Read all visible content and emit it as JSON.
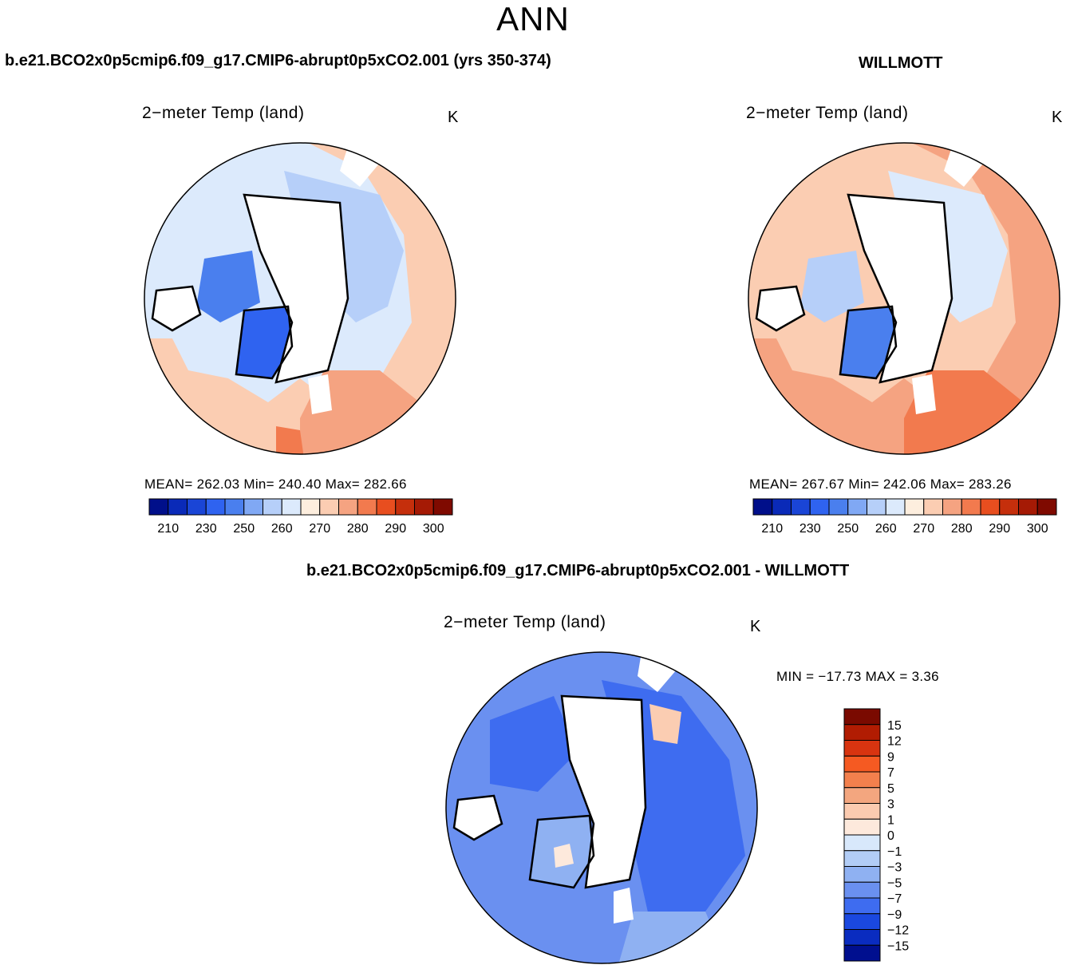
{
  "season": "ANN",
  "panels": [
    {
      "case_title": "b.e21.BCO2x0p5cmip6.f09_g17.CMIP6-abrupt0p5xCO2.001 (yrs 350-374)",
      "title": "2−meter Temp (land)",
      "units": "K",
      "stats": "MEAN= 262.03   Min= 240.40   Max= 282.66",
      "mean": 262.03,
      "min": 240.4,
      "max": 282.66
    },
    {
      "case_title": "WILLMOTT",
      "title": "2−meter Temp (land)",
      "units": "K",
      "stats": "MEAN= 267.67   Min= 242.06   Max= 283.26",
      "mean": 267.67,
      "min": 242.06,
      "max": 283.26
    },
    {
      "case_title": "b.e21.BCO2x0p5cmip6.f09_g17.CMIP6-abrupt0p5xCO2.001 - WILLMOTT",
      "title": "2−meter Temp (land)",
      "units": "K",
      "stats": "MIN = −17.73 MAX =    3.36",
      "min": -17.73,
      "max": 3.36
    }
  ],
  "abs_colorbar": {
    "colors": [
      "#000f8a",
      "#0a2ab8",
      "#1a45d6",
      "#2f63f0",
      "#4a7fee",
      "#80a8f4",
      "#b6cff9",
      "#dceafc",
      "#fdeede",
      "#fbcdb2",
      "#f5a381",
      "#f27a4e",
      "#e84e1f",
      "#c52f0c",
      "#a51a05",
      "#7f0a00"
    ],
    "tick_labels": [
      "210",
      "230",
      "250",
      "260",
      "270",
      "280",
      "290",
      "300"
    ]
  },
  "diff_colorbar": {
    "colors": [
      "#7a0a00",
      "#b11c02",
      "#d83410",
      "#f55a22",
      "#f3804d",
      "#f3a67f",
      "#fbcbb0",
      "#fde9dc",
      "#d8e8fb",
      "#b2cdf6",
      "#8fb1f2",
      "#6a90f0",
      "#3e6cf0",
      "#1a48e0",
      "#0a2cc0",
      "#000f8f"
    ],
    "tick_labels": [
      "15",
      "12",
      "9",
      "7",
      "5",
      "3",
      "1",
      "0",
      "−1",
      "−3",
      "−5",
      "−7",
      "−9",
      "−12",
      "−15"
    ]
  }
}
